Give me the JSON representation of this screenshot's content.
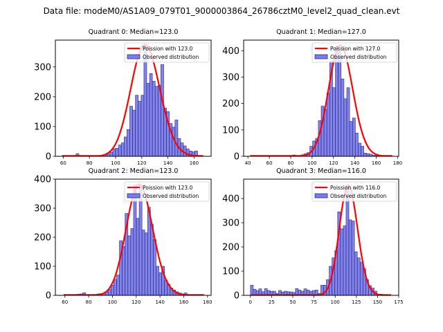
{
  "suptitle": "Data file: modeM0/AS1A09_079T01_9000003864_26786cztM0_level2_quad_clean.evt",
  "colors": {
    "bar_fill": "#7b7bf0",
    "bar_edge": "#1f1f5a",
    "poisson_line": "#ff0000"
  },
  "chart_data": [
    {
      "type": "bar",
      "title": "Quadrant 0: Median=123.0",
      "legend": [
        "Poission with 123.0",
        "Observed distribution"
      ],
      "legend_position": "top-right",
      "xlim": [
        54,
        173
      ],
      "ylim": [
        0,
        390
      ],
      "xticks": [
        60,
        80,
        100,
        120,
        140,
        160
      ],
      "yticks": [
        0,
        100,
        200,
        300
      ],
      "bin_start": 59,
      "bin_width": 2.16,
      "values": [
        1,
        0,
        1,
        0,
        0,
        9,
        0,
        0,
        0,
        0,
        0,
        1,
        1,
        2,
        3,
        5,
        8,
        14,
        25,
        27,
        38,
        45,
        65,
        90,
        168,
        155,
        205,
        185,
        205,
        375,
        245,
        278,
        252,
        235,
        238,
        308,
        162,
        150,
        110,
        98,
        122,
        60,
        45,
        35,
        25,
        18,
        15,
        18,
        3,
        1
      ],
      "poisson_mean": 123.0,
      "poisson_peak": 375
    },
    {
      "type": "bar",
      "title": "Quadrant 1: Median=127.0",
      "legend": [
        "Poission with 127.0",
        "Observed distribution"
      ],
      "legend_position": "top-right",
      "xlim": [
        36,
        181
      ],
      "ylim": [
        0,
        440
      ],
      "xticks": [
        40,
        60,
        80,
        100,
        120,
        140,
        160,
        180
      ],
      "yticks": [
        0,
        100,
        200,
        300,
        400
      ],
      "bin_start": 42,
      "bin_width": 2.66,
      "values": [
        0,
        0,
        0,
        0,
        0,
        0,
        0,
        0,
        0,
        0,
        1,
        2,
        1,
        3,
        1,
        5,
        2,
        3,
        6,
        10,
        14,
        38,
        58,
        68,
        135,
        190,
        178,
        240,
        360,
        260,
        415,
        395,
        293,
        218,
        260,
        132,
        145,
        88,
        50,
        38,
        12,
        10,
        8,
        4,
        3,
        1,
        1,
        0,
        0,
        0
      ],
      "poisson_mean": 127.0,
      "poisson_peak": 420
    },
    {
      "type": "bar",
      "title": "Quadrant 2: Median=123.0",
      "legend": [
        "Poission with 123.0",
        "Observed distribution"
      ],
      "legend_position": "top-right",
      "xlim": [
        52,
        183
      ],
      "ylim": [
        0,
        400
      ],
      "xticks": [
        60,
        80,
        100,
        120,
        140,
        160,
        180
      ],
      "yticks": [
        0,
        100,
        200,
        300,
        400
      ],
      "bin_start": 58.5,
      "bin_width": 2.37,
      "values": [
        0,
        0,
        0,
        0,
        0,
        4,
        5,
        9,
        1,
        0,
        0,
        0,
        5,
        6,
        7,
        12,
        20,
        35,
        55,
        70,
        188,
        168,
        282,
        205,
        230,
        380,
        265,
        380,
        225,
        215,
        303,
        245,
        192,
        100,
        78,
        100,
        52,
        38,
        25,
        18,
        12,
        8,
        5,
        8,
        3,
        2,
        1,
        0,
        1,
        0
      ],
      "poisson_mean": 123.0,
      "poisson_peak": 382
    },
    {
      "type": "bar",
      "title": "Quadrant 3: Median=116.0",
      "legend": [
        "Poission with 116.0",
        "Observed distribution"
      ],
      "legend_position": "top-right",
      "xlim": [
        -8,
        175
      ],
      "ylim": [
        0,
        480
      ],
      "xticks": [
        0,
        25,
        50,
        75,
        100,
        125,
        150,
        175
      ],
      "yticks": [
        0,
        100,
        200,
        300,
        400
      ],
      "bin_start": 0,
      "bin_width": 3.32,
      "values": [
        42,
        25,
        20,
        27,
        15,
        28,
        20,
        17,
        17,
        8,
        20,
        14,
        17,
        15,
        14,
        12,
        28,
        22,
        17,
        27,
        22,
        17,
        20,
        22,
        8,
        42,
        42,
        65,
        120,
        155,
        185,
        345,
        275,
        287,
        455,
        312,
        307,
        180,
        155,
        137,
        110,
        65,
        40,
        30,
        17,
        5,
        5,
        2,
        1,
        0
      ],
      "poisson_mean": 116.0,
      "poisson_peak": 455
    }
  ]
}
